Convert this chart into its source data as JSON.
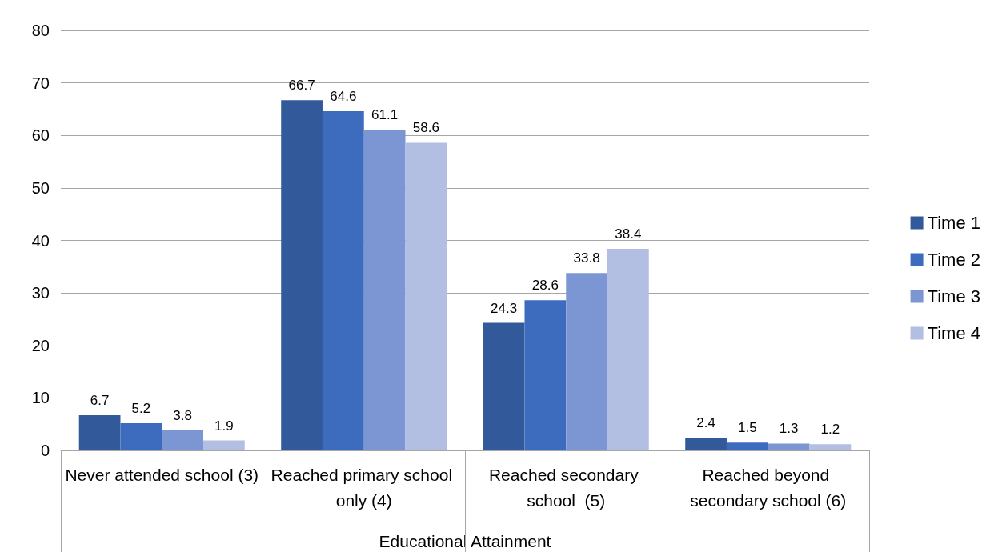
{
  "chart_data": {
    "type": "bar",
    "xlabel": "Educational Attainment",
    "categories": [
      "Never attended school (3)",
      "Reached primary school only (4)",
      "Reached secondary school  (5)",
      "Reached beyond secondary school (6)"
    ],
    "series": [
      {
        "name": "Time 1",
        "color": "#325a9b",
        "values": [
          6.7,
          66.7,
          24.3,
          2.4
        ]
      },
      {
        "name": "Time 2",
        "color": "#3d6cbf",
        "values": [
          5.2,
          64.6,
          28.6,
          1.5
        ]
      },
      {
        "name": "Time 3",
        "color": "#7b96d2",
        "values": [
          3.8,
          61.1,
          33.8,
          1.3
        ]
      },
      {
        "name": "Time 4",
        "color": "#b3bfe2",
        "values": [
          1.9,
          58.6,
          38.4,
          1.2
        ]
      }
    ],
    "ylim": [
      0,
      80
    ],
    "yticks": [
      0,
      10,
      20,
      30,
      40,
      50,
      60,
      70,
      80
    ],
    "grid": "y",
    "legend": "right",
    "data_labels": true
  }
}
